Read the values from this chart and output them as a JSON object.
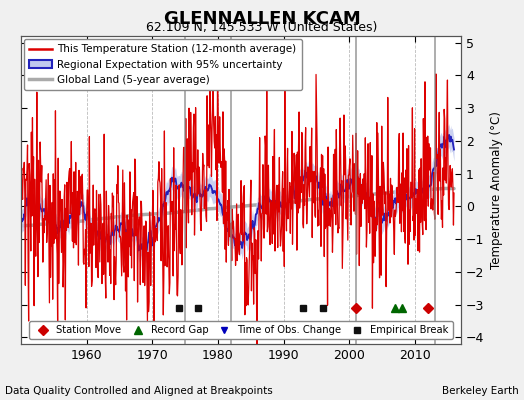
{
  "title": "GLENNALLEN KCAM",
  "subtitle": "62.109 N, 145.533 W (United States)",
  "ylabel": "Temperature Anomaly (°C)",
  "xlabel_footer": "Data Quality Controlled and Aligned at Breakpoints",
  "footer_right": "Berkeley Earth",
  "ylim": [
    -4.2,
    5.2
  ],
  "xlim": [
    1950,
    2017
  ],
  "yticks": [
    -4,
    -3,
    -2,
    -1,
    0,
    1,
    2,
    3,
    4,
    5
  ],
  "xticks": [
    1960,
    1970,
    1980,
    1990,
    2000,
    2010
  ],
  "fig_bg_color": "#f0f0f0",
  "plot_bg_color": "#ffffff",
  "station_line_color": "#dd0000",
  "regional_line_color": "#2222bb",
  "regional_fill_color": "#c0c8ee",
  "global_line_color": "#aaaaaa",
  "legend_station": "This Temperature Station (12-month average)",
  "legend_regional": "Regional Expectation with 95% uncertainty",
  "legend_global": "Global Land (5-year average)",
  "marker_events": {
    "station_moves": [
      2001,
      2012
    ],
    "record_gaps": [
      2007,
      2008
    ],
    "obs_changes": [],
    "empirical_breaks": [
      1974,
      1977,
      1993,
      1996
    ]
  },
  "event_line_years": [
    1975,
    1982,
    2001,
    2013
  ],
  "station_moves_color": "#cc0000",
  "record_gaps_color": "#006600",
  "obs_changes_color": "#0000bb",
  "empirical_breaks_color": "#111111",
  "marker_y": -3.1,
  "event_line_color": "#888888",
  "event_line_lw": 1.2
}
